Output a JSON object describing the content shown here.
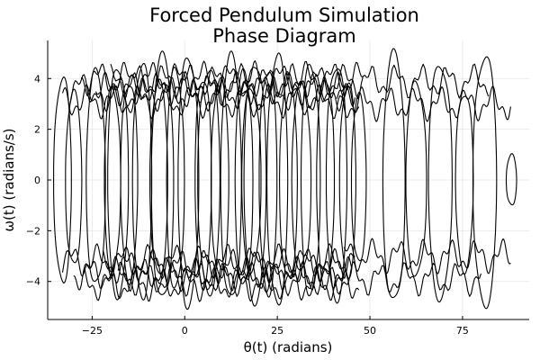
{
  "chart_data": {
    "type": "line",
    "title": "Forced Pendulum Simulation",
    "subtitle": "Phase Diagram",
    "xlabel": "θ(t) (radians)",
    "ylabel": "ω(t) (radians/s)",
    "xlim": [
      -37,
      93
    ],
    "ylim": [
      -5.5,
      5.5
    ],
    "xticks": [
      -25,
      0,
      25,
      50,
      75
    ],
    "xtick_labels": [
      "−25",
      "0",
      "25",
      "50",
      "75"
    ],
    "yticks": [
      -4,
      -2,
      0,
      2,
      4
    ],
    "ytick_labels": [
      "−4",
      "−2",
      "0",
      "2",
      "4"
    ],
    "grid": true,
    "legend": "none",
    "line_color": "#000000",
    "series": [
      {
        "orbits": [
          {
            "center": -33.0,
            "width": 2.4,
            "amp": 4.0
          },
          {
            "center": -30.0,
            "width": 2.2,
            "amp": 3.4
          },
          {
            "center": -24.0,
            "width": 2.6,
            "amp": 4.2
          },
          {
            "center": -19.5,
            "width": 2.2,
            "amp": 3.6
          },
          {
            "center": -18.0,
            "width": 2.8,
            "amp": 4.5
          },
          {
            "center": -15.0,
            "width": 2.3,
            "amp": 3.9
          },
          {
            "center": -11.5,
            "width": 2.6,
            "amp": 4.6
          },
          {
            "center": -7.0,
            "width": 2.4,
            "amp": 3.8
          },
          {
            "center": -6.0,
            "width": 3.0,
            "amp": 4.8
          },
          {
            "center": -2.5,
            "width": 2.4,
            "amp": 4.3
          },
          {
            "center": 1.0,
            "width": 2.8,
            "amp": 4.9
          },
          {
            "center": 5.0,
            "width": 2.2,
            "amp": 4.1
          },
          {
            "center": 6.5,
            "width": 3.0,
            "amp": 4.4
          },
          {
            "center": 9.5,
            "width": 2.4,
            "amp": 3.9
          },
          {
            "center": 12.5,
            "width": 2.8,
            "amp": 4.8
          },
          {
            "center": 16.0,
            "width": 2.4,
            "amp": 4.2
          },
          {
            "center": 18.0,
            "width": 2.6,
            "amp": 3.6
          },
          {
            "center": 19.0,
            "width": 3.0,
            "amp": 4.7
          },
          {
            "center": 22.5,
            "width": 2.4,
            "amp": 4.4
          },
          {
            "center": 25.0,
            "width": 2.8,
            "amp": 4.9
          },
          {
            "center": 28.0,
            "width": 2.4,
            "amp": 4.0
          },
          {
            "center": 31.5,
            "width": 2.6,
            "amp": 3.7
          },
          {
            "center": 34.0,
            "width": 2.6,
            "amp": 4.5
          },
          {
            "center": 38.0,
            "width": 2.4,
            "amp": 4.1
          },
          {
            "center": 41.0,
            "width": 2.8,
            "amp": 4.6
          },
          {
            "center": 44.0,
            "width": 2.2,
            "amp": 3.8
          },
          {
            "center": 47.0,
            "width": 2.0,
            "amp": 3.3
          },
          {
            "center": 56.5,
            "width": 3.0,
            "amp": 4.9
          },
          {
            "center": 62.5,
            "width": 2.8,
            "amp": 3.8
          },
          {
            "center": 69.0,
            "width": 3.2,
            "amp": 4.6
          },
          {
            "center": 75.5,
            "width": 2.4,
            "amp": 3.5
          },
          {
            "center": 81.0,
            "width": 3.2,
            "amp": 4.9
          },
          {
            "center": 88.2,
            "width": 1.4,
            "amp": 1.0
          }
        ],
        "transit_bands": [
          {
            "from": -33.0,
            "to": 47.0,
            "level": 3.1
          },
          {
            "from": -31.0,
            "to": 46.0,
            "level": 3.6
          },
          {
            "from": -28.0,
            "to": 48.0,
            "level": 4.0
          },
          {
            "from": -24.0,
            "to": 44.0,
            "level": 3.4
          },
          {
            "from": -20.0,
            "to": 82.0,
            "level": 3.9
          },
          {
            "from": 41.0,
            "to": 88.0,
            "level": 3.0
          },
          {
            "from": -33.0,
            "to": 46.0,
            "level": -3.2
          },
          {
            "from": -30.0,
            "to": 45.0,
            "level": -3.7
          },
          {
            "from": -27.0,
            "to": 47.0,
            "level": -4.1
          },
          {
            "from": -22.0,
            "to": 44.0,
            "level": -3.4
          },
          {
            "from": -18.0,
            "to": 80.0,
            "level": -3.9
          },
          {
            "from": 43.0,
            "to": 88.0,
            "level": -3.0
          }
        ]
      }
    ]
  }
}
